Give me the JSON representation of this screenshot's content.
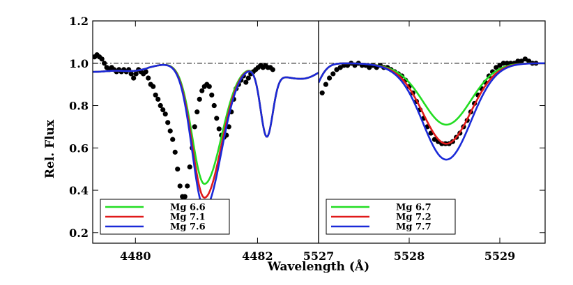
{
  "chart_data": {
    "type": "line",
    "ylabel": "Rel. Flux",
    "xlabel": "Wavelength (Å)",
    "ylim": [
      0.15,
      1.2
    ],
    "yticks": [
      0.2,
      0.4,
      0.6,
      0.8,
      1.0,
      1.2
    ],
    "continuum": 1.0,
    "panels": [
      {
        "xlim": [
          4479.3,
          4483.0
        ],
        "xticks": [
          4480,
          4482
        ],
        "xtick_labels": [
          "4480",
          "4482"
        ],
        "legend_position": "bottom-left",
        "lines": [
          {
            "center": 4481.13,
            "left_edge": 4480.85,
            "right_edge": 4481.55,
            "sigma_left": 0.2,
            "sigma_right": 0.28,
            "weak_center": 4482.15,
            "weak_sigma": 0.1,
            "weak_depth": 0.31
          }
        ],
        "series": [
          {
            "name": "Mg 6.6",
            "color": "#22dd22",
            "min_flux": 0.43
          },
          {
            "name": "Mg 7.1",
            "color": "#e01a1a",
            "min_flux": 0.365
          },
          {
            "name": "Mg 7.6",
            "color": "#1a2ad8",
            "min_flux": 0.315
          }
        ],
        "observed": [
          [
            4479.33,
            1.03
          ],
          [
            4479.37,
            1.04
          ],
          [
            4479.41,
            1.03
          ],
          [
            4479.45,
            1.02
          ],
          [
            4479.49,
            1.0
          ],
          [
            4479.53,
            0.98
          ],
          [
            4479.57,
            0.97
          ],
          [
            4479.61,
            0.98
          ],
          [
            4479.65,
            0.97
          ],
          [
            4479.69,
            0.96
          ],
          [
            4479.73,
            0.97
          ],
          [
            4479.77,
            0.96
          ],
          [
            4479.81,
            0.97
          ],
          [
            4479.85,
            0.96
          ],
          [
            4479.89,
            0.97
          ],
          [
            4479.93,
            0.95
          ],
          [
            4479.97,
            0.93
          ],
          [
            4480.01,
            0.95
          ],
          [
            4480.05,
            0.97
          ],
          [
            4480.09,
            0.96
          ],
          [
            4480.13,
            0.95
          ],
          [
            4480.17,
            0.96
          ],
          [
            4480.21,
            0.93
          ],
          [
            4480.25,
            0.9
          ],
          [
            4480.29,
            0.89
          ],
          [
            4480.33,
            0.85
          ],
          [
            4480.37,
            0.83
          ],
          [
            4480.41,
            0.8
          ],
          [
            4480.45,
            0.78
          ],
          [
            4480.49,
            0.76
          ],
          [
            4480.53,
            0.72
          ],
          [
            4480.57,
            0.68
          ],
          [
            4480.61,
            0.64
          ],
          [
            4480.65,
            0.58
          ],
          [
            4480.69,
            0.5
          ],
          [
            4480.73,
            0.42
          ],
          [
            4480.77,
            0.37
          ],
          [
            4480.81,
            0.37
          ],
          [
            4480.85,
            0.42
          ],
          [
            4480.89,
            0.51
          ],
          [
            4480.93,
            0.6
          ],
          [
            4480.97,
            0.7
          ],
          [
            4481.01,
            0.77
          ],
          [
            4481.05,
            0.83
          ],
          [
            4481.09,
            0.87
          ],
          [
            4481.13,
            0.89
          ],
          [
            4481.17,
            0.9
          ],
          [
            4481.21,
            0.89
          ],
          [
            4481.25,
            0.85
          ],
          [
            4481.29,
            0.8
          ],
          [
            4481.33,
            0.74
          ],
          [
            4481.37,
            0.69
          ],
          [
            4481.41,
            0.66
          ],
          [
            4481.45,
            0.65
          ],
          [
            4481.49,
            0.66
          ],
          [
            4481.53,
            0.7
          ],
          [
            4481.57,
            0.77
          ],
          [
            4481.61,
            0.83
          ],
          [
            4481.65,
            0.88
          ],
          [
            4481.69,
            0.9
          ],
          [
            4481.73,
            0.92
          ],
          [
            4481.77,
            0.94
          ],
          [
            4481.81,
            0.91
          ],
          [
            4481.85,
            0.93
          ],
          [
            4481.89,
            0.95
          ],
          [
            4481.93,
            0.96
          ],
          [
            4481.97,
            0.97
          ],
          [
            4482.01,
            0.98
          ],
          [
            4482.05,
            0.99
          ],
          [
            4482.09,
            0.98
          ],
          [
            4482.13,
            0.99
          ],
          [
            4482.17,
            0.98
          ],
          [
            4482.21,
            0.98
          ],
          [
            4482.25,
            0.97
          ]
        ]
      },
      {
        "xlim": [
          5527.0,
          5529.5
        ],
        "xticks": [
          5527,
          5528,
          5529
        ],
        "xtick_labels": [
          "5527",
          "5528",
          "5529"
        ],
        "legend_position": "bottom-left",
        "lines": [
          {
            "center": 5528.41,
            "sigma_left": 0.26,
            "sigma_right": 0.27
          }
        ],
        "series": [
          {
            "name": "Mg 6.7",
            "color": "#22dd22",
            "min_flux": 0.71
          },
          {
            "name": "Mg 7.2",
            "color": "#e01a1a",
            "min_flux": 0.62
          },
          {
            "name": "Mg 7.7",
            "color": "#1a2ad8",
            "min_flux": 0.545
          }
        ],
        "observed": [
          [
            5527.04,
            0.86
          ],
          [
            5527.08,
            0.9
          ],
          [
            5527.12,
            0.93
          ],
          [
            5527.16,
            0.95
          ],
          [
            5527.2,
            0.97
          ],
          [
            5527.24,
            0.98
          ],
          [
            5527.28,
            0.99
          ],
          [
            5527.32,
            0.99
          ],
          [
            5527.36,
            1.0
          ],
          [
            5527.4,
            0.99
          ],
          [
            5527.44,
            1.0
          ],
          [
            5527.48,
            0.99
          ],
          [
            5527.52,
            0.99
          ],
          [
            5527.56,
            0.98
          ],
          [
            5527.6,
            0.99
          ],
          [
            5527.64,
            0.98
          ],
          [
            5527.68,
            0.99
          ],
          [
            5527.72,
            0.98
          ],
          [
            5527.76,
            0.98
          ],
          [
            5527.8,
            0.97
          ],
          [
            5527.84,
            0.96
          ],
          [
            5527.88,
            0.95
          ],
          [
            5527.92,
            0.94
          ],
          [
            5527.96,
            0.92
          ],
          [
            5528.0,
            0.89
          ],
          [
            5528.04,
            0.86
          ],
          [
            5528.08,
            0.82
          ],
          [
            5528.12,
            0.78
          ],
          [
            5528.16,
            0.74
          ],
          [
            5528.2,
            0.7
          ],
          [
            5528.24,
            0.67
          ],
          [
            5528.28,
            0.64
          ],
          [
            5528.32,
            0.63
          ],
          [
            5528.36,
            0.62
          ],
          [
            5528.4,
            0.62
          ],
          [
            5528.44,
            0.62
          ],
          [
            5528.48,
            0.63
          ],
          [
            5528.52,
            0.65
          ],
          [
            5528.56,
            0.67
          ],
          [
            5528.6,
            0.7
          ],
          [
            5528.64,
            0.73
          ],
          [
            5528.68,
            0.77
          ],
          [
            5528.72,
            0.81
          ],
          [
            5528.76,
            0.85
          ],
          [
            5528.8,
            0.88
          ],
          [
            5528.84,
            0.91
          ],
          [
            5528.88,
            0.94
          ],
          [
            5528.92,
            0.96
          ],
          [
            5528.96,
            0.98
          ],
          [
            5529.0,
            0.99
          ],
          [
            5529.04,
            1.0
          ],
          [
            5529.08,
            1.0
          ],
          [
            5529.12,
            1.0
          ],
          [
            5529.16,
            1.0
          ],
          [
            5529.2,
            1.01
          ],
          [
            5529.24,
            1.01
          ],
          [
            5529.28,
            1.02
          ],
          [
            5529.32,
            1.01
          ],
          [
            5529.36,
            1.0
          ],
          [
            5529.4,
            1.0
          ]
        ]
      }
    ]
  }
}
